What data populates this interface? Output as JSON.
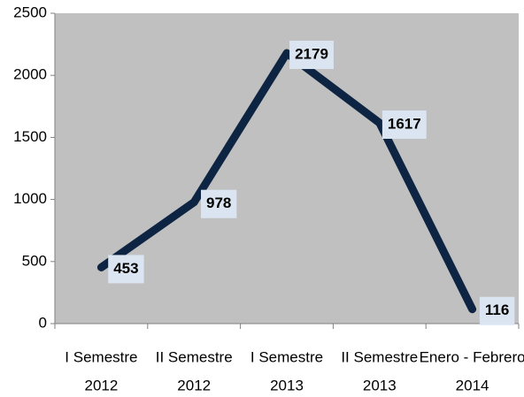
{
  "chart_data": {
    "type": "line",
    "categories": [
      [
        "I Semestre",
        "2012"
      ],
      [
        "II Semestre",
        "2012"
      ],
      [
        "I Semestre",
        "2013"
      ],
      [
        "II Semestre",
        "2013"
      ],
      [
        "Enero - Febrero",
        "2014"
      ]
    ],
    "series": [
      {
        "color": "#0e2443",
        "values": [
          453,
          978,
          2179,
          1617,
          116
        ]
      }
    ],
    "ylim": [
      0,
      2500
    ],
    "yticks": [
      0,
      500,
      1000,
      1500,
      2000,
      2500
    ],
    "plot_background": "#c0c0c0",
    "label_background": "#dbe5f1",
    "grid": false
  }
}
